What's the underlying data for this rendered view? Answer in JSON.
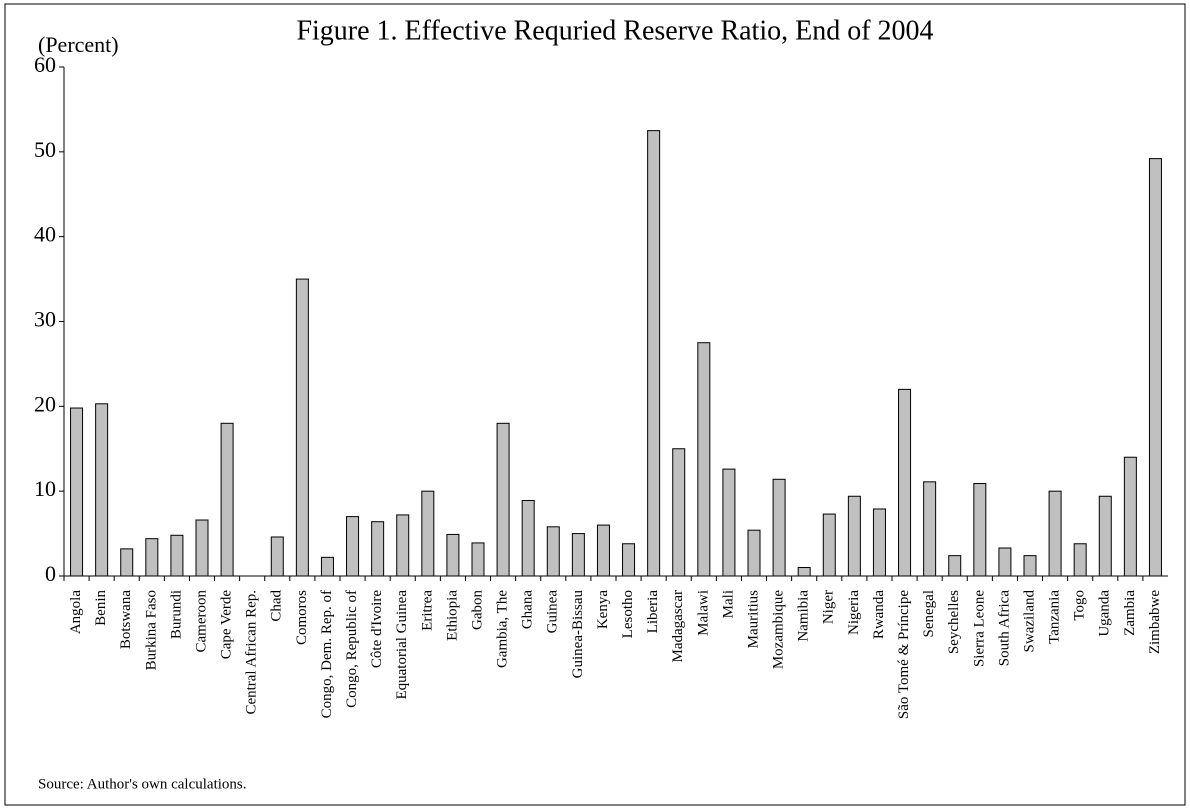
{
  "chart_data": {
    "type": "bar",
    "title": "Figure 1. Effective Requried Reserve Ratio, End of 2004",
    "y_label": "(Percent)",
    "source": "Source: Author's own calculations.",
    "categories": [
      "Angola",
      "Benin",
      "Botswana",
      "Burkina Faso",
      "Burundi",
      "Cameroon",
      "Cape Verde",
      "Central African Rep.",
      "Chad",
      "Comoros",
      "Congo, Dem. Rep. of",
      "Congo, Republic of",
      "Côte d'Ivoire",
      "Equatorial Guinea",
      "Eritrea",
      "Ethiopia",
      "Gabon",
      "Gambia, The",
      "Ghana",
      "Guinea",
      "Guinea-Bissau",
      "Kenya",
      "Lesotho",
      "Liberia",
      "Madagascar",
      "Malawi",
      "Mali",
      "Mauritius",
      "Mozambique",
      "Namibia",
      "Niger",
      "Nigeria",
      "Rwanda",
      "São Tomé & Príncipe",
      "Senegal",
      "Seychelles",
      "Sierra Leone",
      "South Africa",
      "Swaziland",
      "Tanzania",
      "Togo",
      "Uganda",
      "Zambia",
      "Zimbabwe"
    ],
    "values": [
      19.8,
      20.3,
      3.2,
      4.4,
      4.8,
      6.6,
      18,
      null,
      4.6,
      35,
      2.2,
      7.0,
      6.4,
      7.2,
      10,
      4.9,
      3.9,
      18,
      8.9,
      5.8,
      5.0,
      6.0,
      3.8,
      52.5,
      15,
      27.5,
      12.6,
      5.4,
      11.4,
      1.0,
      7.3,
      9.4,
      7.9,
      22,
      11.1,
      2.4,
      10.9,
      3.3,
      2.4,
      10,
      3.8,
      9.4,
      14,
      49.2
    ],
    "color": "#c0c0c0",
    "ylim": [
      0,
      60
    ],
    "yticks": [
      0,
      10,
      20,
      30,
      40,
      50,
      60
    ],
    "grid": false
  }
}
